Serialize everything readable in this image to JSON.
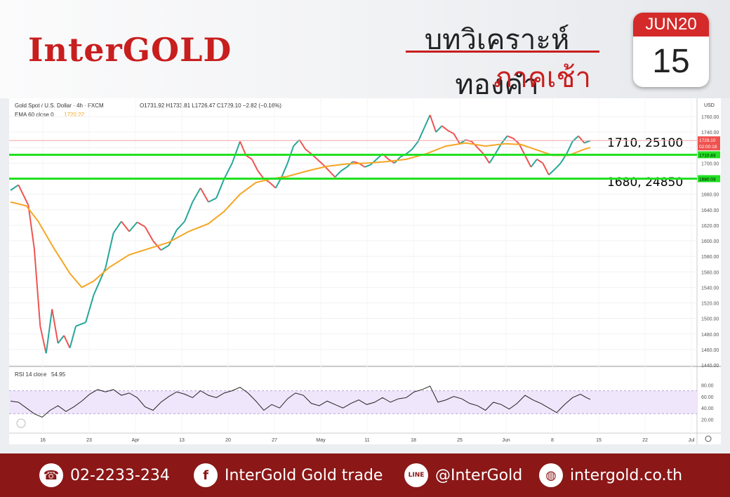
{
  "header": {
    "logo": "InterGOLD",
    "title_line1": "บทวิเคราะห์ทองคำ",
    "title_line2": "ภาคเช้า",
    "calendar_month": "JUN20",
    "calendar_day": "15"
  },
  "chart_data": {
    "type": "line",
    "symbol": "Gold Spot / U.S. Dollar · 4h · FXCM",
    "ohlc": "O1731.92 H1733.81 L1726.47 C1729.10 −2.82 (−0.16%)",
    "ema_label": "EMA 60 close 0",
    "ema_value": "1720.22",
    "rsi_label": "RSI 14 close",
    "rsi_value": "54.95",
    "currency": "USD",
    "ylim": [
      1440,
      1770
    ],
    "y_ticks": [
      "1760.00",
      "1740.00",
      "1720.00",
      "1700.00",
      "1680.00",
      "1660.00",
      "1640.00",
      "1620.00",
      "1600.00",
      "1580.00",
      "1560.00",
      "1540.00",
      "1520.00",
      "1500.00",
      "1480.00",
      "1460.00",
      "1440.00"
    ],
    "rsi_ticks": [
      "80.00",
      "60.00",
      "40.00",
      "20.00"
    ],
    "x_ticks": [
      "16",
      "23",
      "Apr",
      "13",
      "20",
      "27",
      "May",
      "11",
      "18",
      "25",
      "Jun",
      "8",
      "15",
      "22",
      "Jul"
    ],
    "last_price": "1729.10",
    "countdown": "02:00:18",
    "levels": [
      {
        "value": 1710.83,
        "label": "1710.83",
        "annotation": "1710, 25100"
      },
      {
        "value": 1680.03,
        "label": "1680.03",
        "annotation": "1680, 24850"
      }
    ],
    "price_path": [
      [
        0,
        1665
      ],
      [
        4,
        1672
      ],
      [
        9,
        1646
      ],
      [
        12,
        1590
      ],
      [
        15,
        1490
      ],
      [
        18,
        1455
      ],
      [
        21,
        1512
      ],
      [
        24,
        1468
      ],
      [
        27,
        1478
      ],
      [
        30,
        1462
      ],
      [
        33,
        1490
      ],
      [
        38,
        1495
      ],
      [
        42,
        1530
      ],
      [
        48,
        1565
      ],
      [
        52,
        1610
      ],
      [
        56,
        1625
      ],
      [
        60,
        1612
      ],
      [
        64,
        1624
      ],
      [
        68,
        1618
      ],
      [
        72,
        1600
      ],
      [
        76,
        1588
      ],
      [
        80,
        1594
      ],
      [
        84,
        1614
      ],
      [
        88,
        1625
      ],
      [
        92,
        1650
      ],
      [
        96,
        1668
      ],
      [
        100,
        1650
      ],
      [
        104,
        1655
      ],
      [
        108,
        1680
      ],
      [
        112,
        1700
      ],
      [
        116,
        1728
      ],
      [
        119,
        1710
      ],
      [
        122,
        1705
      ],
      [
        125,
        1690
      ],
      [
        128,
        1680
      ],
      [
        131,
        1675
      ],
      [
        134,
        1668
      ],
      [
        137,
        1682
      ],
      [
        140,
        1700
      ],
      [
        143,
        1722
      ],
      [
        146,
        1730
      ],
      [
        149,
        1718
      ],
      [
        152,
        1712
      ],
      [
        155,
        1705
      ],
      [
        158,
        1698
      ],
      [
        161,
        1690
      ],
      [
        164,
        1682
      ],
      [
        167,
        1690
      ],
      [
        170,
        1695
      ],
      [
        173,
        1702
      ],
      [
        176,
        1700
      ],
      [
        179,
        1695
      ],
      [
        182,
        1698
      ],
      [
        185,
        1705
      ],
      [
        188,
        1712
      ],
      [
        191,
        1705
      ],
      [
        194,
        1700
      ],
      [
        197,
        1708
      ],
      [
        200,
        1712
      ],
      [
        203,
        1718
      ],
      [
        206,
        1728
      ],
      [
        209,
        1745
      ],
      [
        212,
        1762
      ],
      [
        215,
        1740
      ],
      [
        218,
        1748
      ],
      [
        221,
        1742
      ],
      [
        224,
        1738
      ],
      [
        227,
        1725
      ],
      [
        230,
        1730
      ],
      [
        233,
        1728
      ],
      [
        236,
        1720
      ],
      [
        239,
        1712
      ],
      [
        242,
        1700
      ],
      [
        245,
        1712
      ],
      [
        248,
        1725
      ],
      [
        251,
        1735
      ],
      [
        254,
        1732
      ],
      [
        257,
        1725
      ],
      [
        260,
        1710
      ],
      [
        263,
        1695
      ],
      [
        266,
        1705
      ],
      [
        269,
        1700
      ],
      [
        272,
        1685
      ],
      [
        275,
        1692
      ],
      [
        278,
        1700
      ],
      [
        281,
        1712
      ],
      [
        284,
        1728
      ],
      [
        287,
        1735
      ],
      [
        290,
        1726
      ],
      [
        293,
        1729
      ]
    ],
    "ema_path": [
      [
        0,
        1650
      ],
      [
        8,
        1645
      ],
      [
        14,
        1625
      ],
      [
        22,
        1590
      ],
      [
        30,
        1558
      ],
      [
        36,
        1540
      ],
      [
        42,
        1548
      ],
      [
        50,
        1566
      ],
      [
        60,
        1582
      ],
      [
        70,
        1590
      ],
      [
        80,
        1598
      ],
      [
        90,
        1612
      ],
      [
        100,
        1622
      ],
      [
        108,
        1638
      ],
      [
        116,
        1660
      ],
      [
        124,
        1675
      ],
      [
        132,
        1680
      ],
      [
        140,
        1683
      ],
      [
        150,
        1690
      ],
      [
        160,
        1696
      ],
      [
        170,
        1699
      ],
      [
        180,
        1700
      ],
      [
        190,
        1702
      ],
      [
        200,
        1705
      ],
      [
        210,
        1712
      ],
      [
        220,
        1722
      ],
      [
        230,
        1726
      ],
      [
        240,
        1722
      ],
      [
        250,
        1725
      ],
      [
        258,
        1724
      ],
      [
        266,
        1717
      ],
      [
        274,
        1710
      ],
      [
        282,
        1710
      ],
      [
        290,
        1718
      ],
      [
        293,
        1720
      ]
    ],
    "rsi_path": [
      [
        0,
        52
      ],
      [
        4,
        50
      ],
      [
        8,
        40
      ],
      [
        12,
        30
      ],
      [
        16,
        24
      ],
      [
        20,
        36
      ],
      [
        24,
        44
      ],
      [
        28,
        34
      ],
      [
        32,
        42
      ],
      [
        36,
        52
      ],
      [
        40,
        64
      ],
      [
        44,
        72
      ],
      [
        48,
        68
      ],
      [
        52,
        72
      ],
      [
        56,
        62
      ],
      [
        60,
        66
      ],
      [
        64,
        58
      ],
      [
        68,
        42
      ],
      [
        72,
        36
      ],
      [
        76,
        50
      ],
      [
        80,
        60
      ],
      [
        84,
        68
      ],
      [
        88,
        64
      ],
      [
        92,
        58
      ],
      [
        96,
        70
      ],
      [
        100,
        62
      ],
      [
        104,
        58
      ],
      [
        108,
        66
      ],
      [
        112,
        70
      ],
      [
        116,
        76
      ],
      [
        120,
        66
      ],
      [
        124,
        52
      ],
      [
        128,
        36
      ],
      [
        132,
        46
      ],
      [
        136,
        40
      ],
      [
        140,
        56
      ],
      [
        144,
        66
      ],
      [
        148,
        62
      ],
      [
        152,
        48
      ],
      [
        156,
        44
      ],
      [
        160,
        52
      ],
      [
        164,
        46
      ],
      [
        168,
        40
      ],
      [
        172,
        48
      ],
      [
        176,
        54
      ],
      [
        180,
        46
      ],
      [
        184,
        50
      ],
      [
        188,
        58
      ],
      [
        192,
        50
      ],
      [
        196,
        56
      ],
      [
        200,
        58
      ],
      [
        204,
        68
      ],
      [
        208,
        72
      ],
      [
        212,
        78
      ],
      [
        216,
        50
      ],
      [
        220,
        54
      ],
      [
        224,
        60
      ],
      [
        228,
        56
      ],
      [
        232,
        48
      ],
      [
        236,
        44
      ],
      [
        240,
        36
      ],
      [
        244,
        50
      ],
      [
        248,
        46
      ],
      [
        252,
        38
      ],
      [
        256,
        48
      ],
      [
        260,
        62
      ],
      [
        264,
        54
      ],
      [
        268,
        48
      ],
      [
        272,
        40
      ],
      [
        276,
        32
      ],
      [
        280,
        46
      ],
      [
        284,
        58
      ],
      [
        288,
        64
      ],
      [
        291,
        58
      ],
      [
        293,
        55
      ]
    ]
  },
  "footer": {
    "phone": "02-2233-234",
    "facebook": "InterGold Gold trade",
    "line": "@InterGold",
    "website": "intergold.co.th",
    "line_icon": "LINE"
  }
}
